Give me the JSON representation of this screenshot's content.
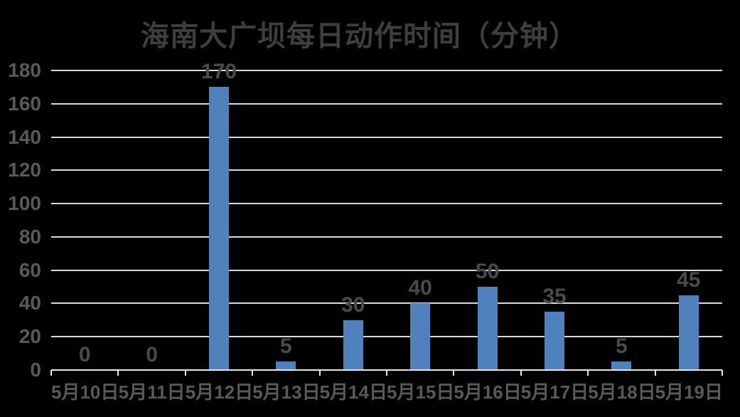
{
  "window": {
    "background": "#000000"
  },
  "chart_data": {
    "type": "bar",
    "title": "海南大广坝每日动作时间（分钟）",
    "xlabel": "",
    "ylabel": "",
    "categories": [
      "5月10日",
      "5月11日",
      "5月12日",
      "5月13日",
      "5月14日",
      "5月15日",
      "5月16日",
      "5月17日",
      "5月18日",
      "5月19日"
    ],
    "values": [
      0,
      0,
      170,
      5,
      30,
      40,
      50,
      35,
      5,
      45
    ],
    "value_labels": [
      "0",
      "0",
      "170",
      "5",
      "30",
      "40",
      "50",
      "35",
      "5",
      "45"
    ],
    "ylim": [
      0,
      180
    ],
    "ytick_step": 20,
    "ytick_labels": [
      "0",
      "20",
      "40",
      "60",
      "80",
      "100",
      "120",
      "140",
      "160",
      "180"
    ],
    "grid": true,
    "legend_position": "none",
    "colors": {
      "bar": "#4F81BD",
      "title_text": "#3E3E40",
      "axis_label_text": "#595959",
      "data_label_text": "#4A4A4C",
      "gridline": "#D9D9D9",
      "axis_line": "#E6E6E6",
      "background": "#000000"
    }
  }
}
